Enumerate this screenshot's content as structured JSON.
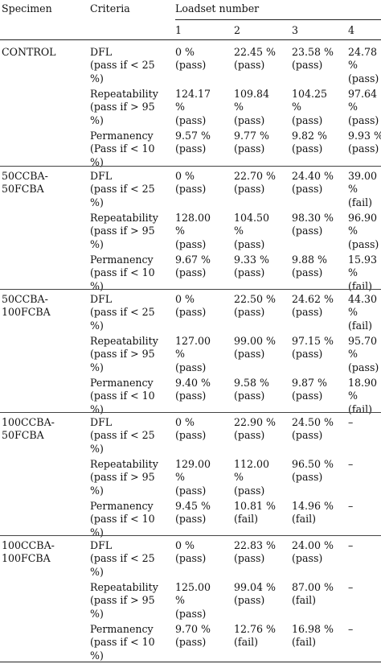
{
  "headers": {
    "specimen": "Specimen",
    "criteria": "Criteria",
    "loadset": "Loadset number",
    "loadsets": [
      "1",
      "2",
      "3",
      "4"
    ]
  },
  "groups": [
    {
      "specimen": "CONTROL",
      "rows": [
        {
          "criterion": "DFL\n(pass if < 25\n%)",
          "values": [
            "0 %\n(pass)",
            "22.45 %\n(pass)",
            "23.58 %\n(pass)",
            "24.78\n%\n(pass)"
          ]
        },
        {
          "criterion": "Repeatability\n(pass if > 95\n%)",
          "values": [
            "124.17\n%\n(pass)",
            "109.84\n%\n(pass)",
            "104.25\n%\n(pass)",
            "97.64\n%\n(pass)"
          ]
        },
        {
          "criterion": "Permanency\n(Pass if < 10\n%)",
          "values": [
            "9.57 %\n(pass)",
            "9.77 %\n(pass)",
            "9.82 %\n(pass)",
            "9.93 %\n(pass)"
          ]
        }
      ]
    },
    {
      "specimen": "50CCBA-\n50FCBA",
      "rows": [
        {
          "criterion": "DFL\n(pass if < 25\n%)",
          "values": [
            "0 %\n(pass)",
            "22.70 %\n(pass)",
            "24.40 %\n(pass)",
            "39.00\n%\n(fail)"
          ]
        },
        {
          "criterion": "Repeatability\n(pass if > 95\n%)",
          "values": [
            "128.00\n%\n(pass)",
            "104.50\n%\n(pass)",
            "98.30 %\n(pass)",
            "96.90\n%\n(pass)"
          ]
        },
        {
          "criterion": "Permanency\n(pass if < 10\n%)",
          "values": [
            "9.67 %\n(pass)",
            "9.33 %\n(pass)",
            "9.88 %\n(pass)",
            "15.93\n%\n(fail)"
          ]
        }
      ]
    },
    {
      "specimen": "50CCBA-\n100FCBA",
      "rows": [
        {
          "criterion": "DFL\n(pass if < 25\n%)",
          "values": [
            "0 %\n(pass)",
            "22.50 %\n(pass)",
            "24.62 %\n(pass)",
            "44.30\n%\n(fail)"
          ]
        },
        {
          "criterion": "Repeatability\n(pass if > 95\n%)",
          "values": [
            "127.00\n%\n(pass)",
            "99.00 %\n(pass)",
            "97.15 %\n(pass)",
            "95.70\n%\n(pass)"
          ]
        },
        {
          "criterion": "Permanency\n(pass if < 10\n%)",
          "values": [
            "9.40 %\n(pass)",
            "9.58 %\n(pass)",
            "9.87 %\n(pass)",
            "18.90\n%\n(fail)"
          ]
        }
      ]
    },
    {
      "specimen": "100CCBA-\n50FCBA",
      "rows": [
        {
          "criterion": "DFL\n(pass if < 25\n%)",
          "values": [
            "0 %\n(pass)",
            "22.90 %\n(pass)",
            "24.50 %\n(pass)",
            "–"
          ]
        },
        {
          "criterion": "Repeatability\n(pass if > 95\n%)",
          "values": [
            "129.00\n%\n(pass)",
            "112.00\n%\n(pass)",
            "96.50 %\n(pass)",
            "–"
          ]
        },
        {
          "criterion": "Permanency\n(pass if < 10\n%)",
          "values": [
            "9.45 %\n(pass)",
            "10.81 %\n(fail)",
            "14.96 %\n(fail)",
            "–"
          ]
        }
      ]
    },
    {
      "specimen": "100CCBA-\n100FCBA",
      "rows": [
        {
          "criterion": "DFL\n(pass if < 25\n%)",
          "values": [
            "0 %\n(pass)",
            "22.83 %\n(pass)",
            "24.00 %\n(pass)",
            "–"
          ]
        },
        {
          "criterion": "Repeatability\n(pass if > 95\n%)",
          "values": [
            "125.00\n%\n(pass)",
            "99.04 %\n(pass)",
            "87.00 %\n(fail)",
            "–"
          ]
        },
        {
          "criterion": "Permanency\n(pass if < 10\n%)",
          "values": [
            "9.70 %\n(pass)",
            "12.76 %\n(fail)",
            "16.98 %\n(fail)",
            "–"
          ]
        }
      ]
    }
  ]
}
